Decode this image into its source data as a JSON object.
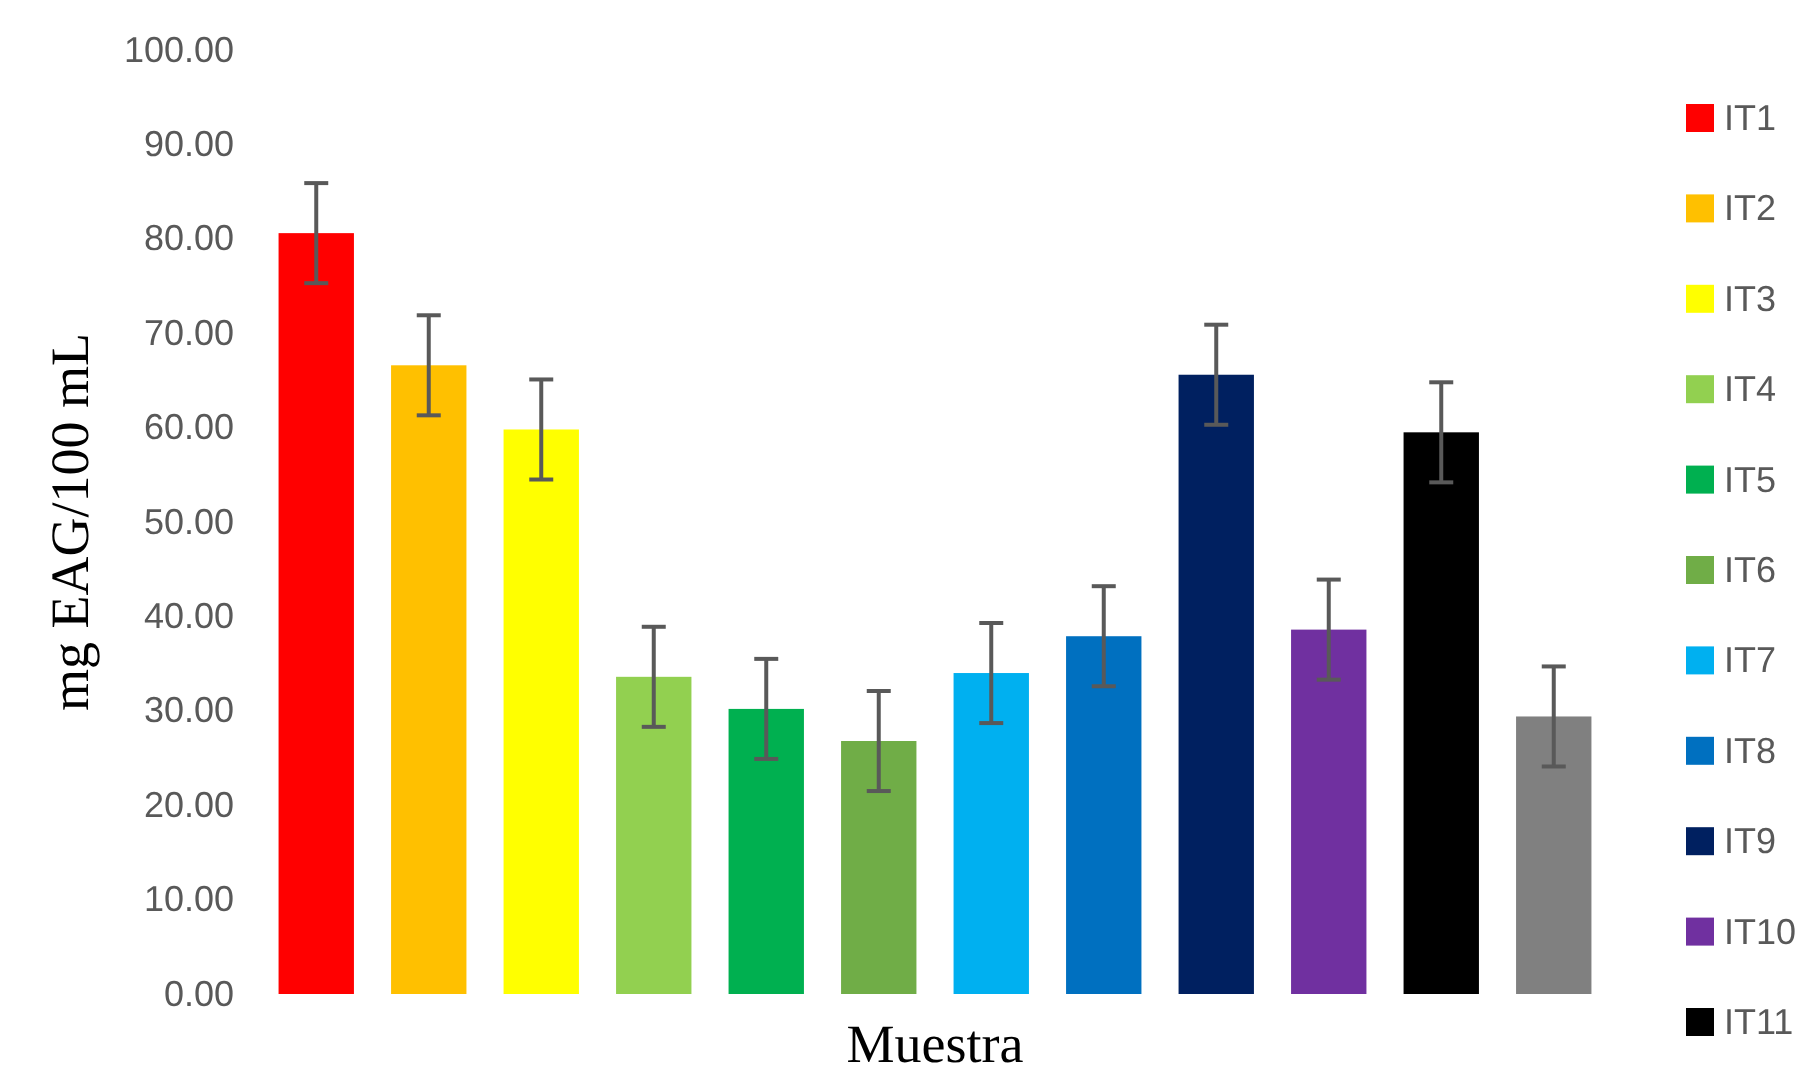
{
  "chart_data": {
    "type": "bar",
    "stacked": true,
    "xlabel": "Muestra",
    "ylabel": "mg EAG/100 mL",
    "categories": [
      null,
      null,
      null,
      null,
      null,
      null,
      null,
      null,
      null,
      null,
      null,
      null
    ],
    "ylim": [
      0,
      100
    ],
    "yticks": [
      {
        "value": 0,
        "label": "0.00"
      },
      {
        "value": 10,
        "label": "10.00"
      },
      {
        "value": 20,
        "label": "20.00"
      },
      {
        "value": 30,
        "label": "30.00"
      },
      {
        "value": 40,
        "label": "40.00"
      },
      {
        "value": 50,
        "label": "50.00"
      },
      {
        "value": 60,
        "label": "60.00"
      },
      {
        "value": 70,
        "label": "70.00"
      },
      {
        "value": 80,
        "label": "80.00"
      },
      {
        "value": 90,
        "label": "90.00"
      },
      {
        "value": 100,
        "label": "100.00"
      }
    ],
    "legend": "right",
    "series": [
      {
        "name": "IT1",
        "color": "#ff0000",
        "values": [
          80.6,
          0,
          0,
          0,
          0,
          0,
          0,
          0,
          0,
          0,
          0,
          0
        ],
        "errors": [
          5.3,
          null,
          null,
          null,
          null,
          null,
          null,
          null,
          null,
          null,
          null,
          null
        ]
      },
      {
        "name": "IT2",
        "color": "#ffc000",
        "values": [
          0,
          66.6,
          0,
          0,
          0,
          0,
          0,
          0,
          0,
          0,
          0,
          0
        ],
        "errors": [
          null,
          5.3,
          null,
          null,
          null,
          null,
          null,
          null,
          null,
          null,
          null,
          null
        ]
      },
      {
        "name": "IT3",
        "color": "#ffff00",
        "values": [
          0,
          0,
          59.8,
          0,
          0,
          0,
          0,
          0,
          0,
          0,
          0,
          0
        ],
        "errors": [
          null,
          null,
          5.3,
          null,
          null,
          null,
          null,
          null,
          null,
          null,
          null,
          null
        ]
      },
      {
        "name": "IT4",
        "color": "#92d050",
        "values": [
          0,
          0,
          0,
          33.6,
          0,
          0,
          0,
          0,
          0,
          0,
          0,
          0
        ],
        "errors": [
          null,
          null,
          null,
          5.3,
          null,
          null,
          null,
          null,
          null,
          null,
          null,
          null
        ]
      },
      {
        "name": "IT5",
        "color": "#00b050",
        "values": [
          0,
          0,
          0,
          0,
          30.2,
          0,
          0,
          0,
          0,
          0,
          0,
          0
        ],
        "errors": [
          null,
          null,
          null,
          null,
          5.3,
          null,
          null,
          null,
          null,
          null,
          null,
          null
        ]
      },
      {
        "name": "IT6",
        "color": "#70ad47",
        "values": [
          0,
          0,
          0,
          0,
          0,
          26.8,
          0,
          0,
          0,
          0,
          0,
          0
        ],
        "errors": [
          null,
          null,
          null,
          null,
          null,
          5.3,
          null,
          null,
          null,
          null,
          null,
          null
        ]
      },
      {
        "name": "IT7",
        "color": "#00b0f0",
        "values": [
          0,
          0,
          0,
          0,
          0,
          0,
          34.0,
          0,
          0,
          0,
          0,
          0
        ],
        "errors": [
          null,
          null,
          null,
          null,
          null,
          null,
          5.3,
          null,
          null,
          null,
          null,
          null
        ]
      },
      {
        "name": "IT8",
        "color": "#0070c0",
        "values": [
          0,
          0,
          0,
          0,
          0,
          0,
          0,
          37.9,
          0,
          0,
          0,
          0
        ],
        "errors": [
          null,
          null,
          null,
          null,
          null,
          null,
          null,
          5.3,
          null,
          null,
          null,
          null
        ]
      },
      {
        "name": "IT9",
        "color": "#002060",
        "values": [
          0,
          0,
          0,
          0,
          0,
          0,
          0,
          0,
          65.6,
          0,
          0,
          0
        ],
        "errors": [
          null,
          null,
          null,
          null,
          null,
          null,
          null,
          null,
          5.3,
          null,
          null,
          null
        ]
      },
      {
        "name": "IT10",
        "color": "#7030a0",
        "values": [
          0,
          0,
          0,
          0,
          0,
          0,
          0,
          0,
          0,
          38.6,
          0,
          0
        ],
        "errors": [
          null,
          null,
          null,
          null,
          null,
          null,
          null,
          null,
          null,
          5.3,
          null,
          null
        ]
      },
      {
        "name": "IT11",
        "color": "#000000",
        "values": [
          0,
          0,
          0,
          0,
          0,
          0,
          0,
          0,
          0,
          0,
          59.5,
          0
        ],
        "errors": [
          null,
          null,
          null,
          null,
          null,
          null,
          null,
          null,
          null,
          null,
          5.3,
          null
        ]
      },
      {
        "color": "#808080",
        "values": [
          0,
          0,
          0,
          0,
          0,
          0,
          0,
          0,
          0,
          0,
          0,
          29.4
        ],
        "errors": [
          null,
          null,
          null,
          null,
          null,
          null,
          null,
          null,
          null,
          null,
          null,
          5.3
        ]
      }
    ]
  }
}
